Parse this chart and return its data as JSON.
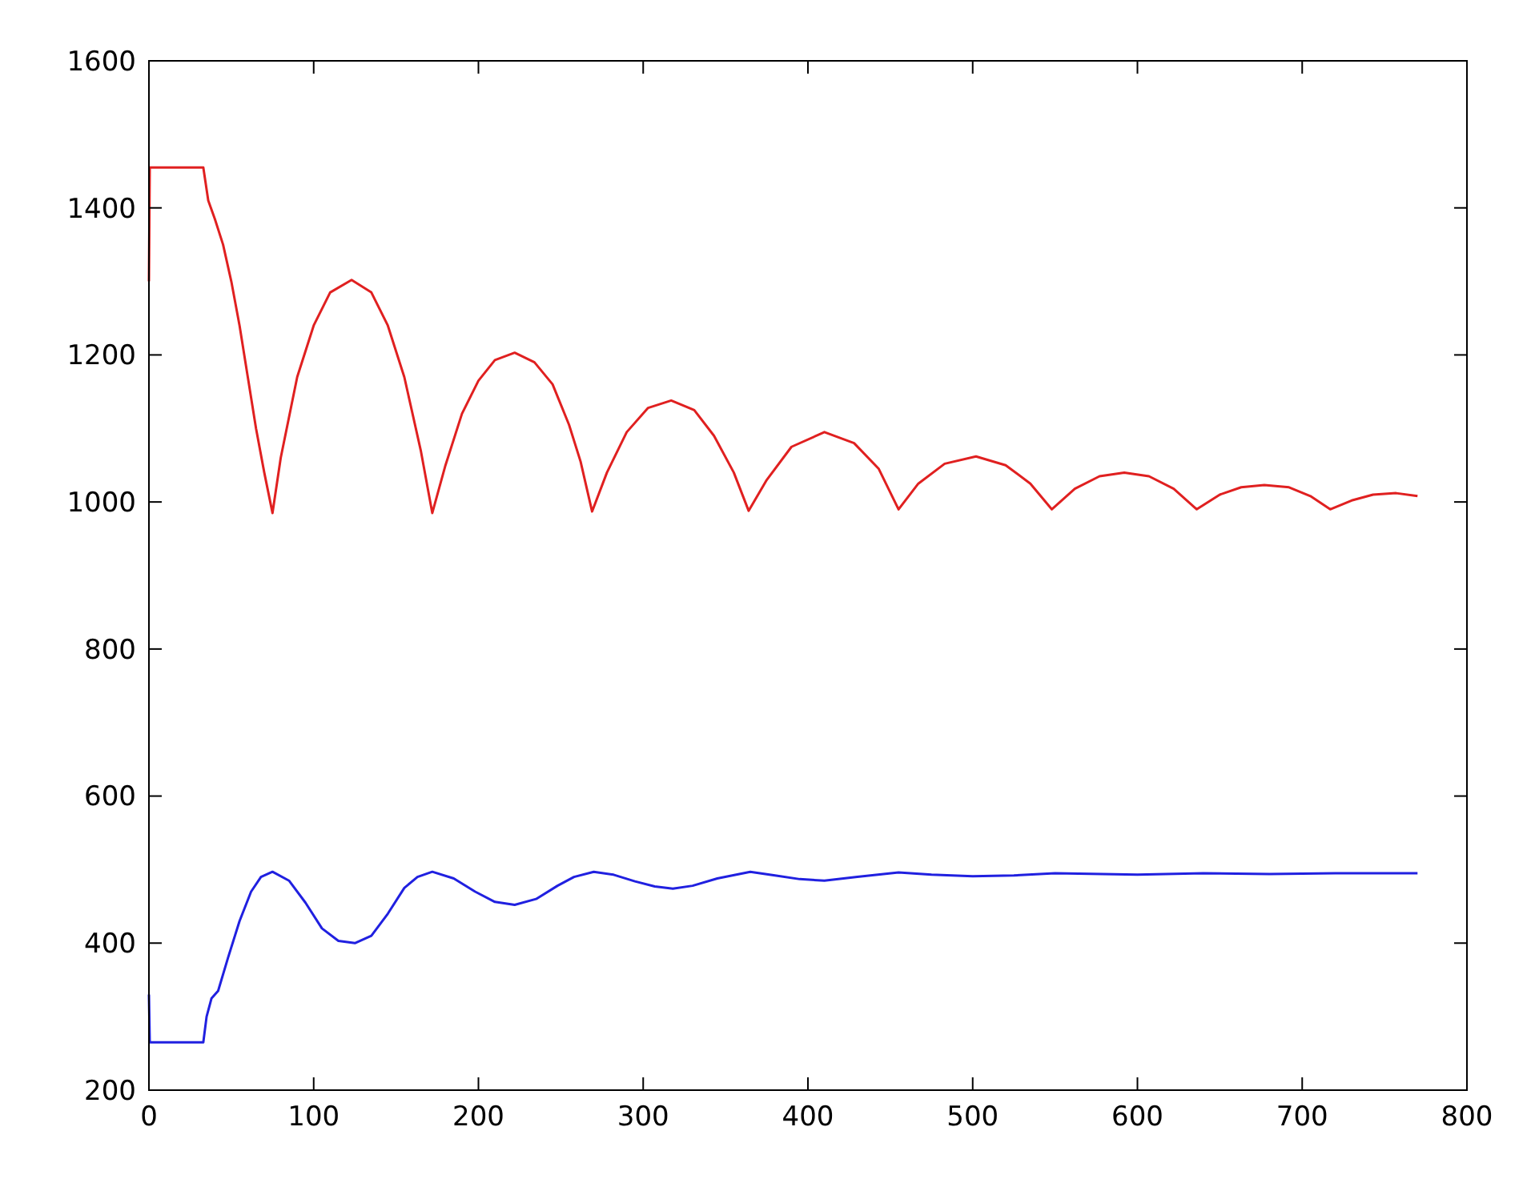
{
  "chart_data": {
    "type": "line",
    "xlim": [
      0,
      800
    ],
    "ylim": [
      200,
      1600
    ],
    "xticks": [
      0,
      100,
      200,
      300,
      400,
      500,
      600,
      700,
      800
    ],
    "yticks": [
      200,
      400,
      600,
      800,
      1000,
      1200,
      1400,
      1600
    ],
    "grid": false,
    "series": [
      {
        "color": "#e02020",
        "x": [
          0,
          0.5,
          33,
          36,
          40,
          45,
          50,
          55,
          60,
          65,
          70,
          75,
          80,
          90,
          100,
          110,
          123,
          135,
          145,
          155,
          165,
          172,
          180,
          190,
          200,
          210,
          222,
          234,
          245,
          255,
          262,
          269,
          278,
          290,
          303,
          317,
          331,
          343,
          355,
          364,
          375,
          390,
          410,
          428,
          443,
          455,
          467,
          483,
          502,
          520,
          535,
          548,
          562,
          577,
          592,
          607,
          622,
          636,
          650,
          663,
          677,
          692,
          705,
          717,
          730,
          743,
          757,
          770
        ],
        "values": [
          1300,
          1455,
          1455,
          1410,
          1385,
          1350,
          1300,
          1240,
          1170,
          1100,
          1040,
          985,
          1060,
          1170,
          1240,
          1285,
          1302,
          1285,
          1240,
          1170,
          1070,
          985,
          1050,
          1120,
          1165,
          1193,
          1203,
          1190,
          1160,
          1105,
          1055,
          987,
          1040,
          1095,
          1128,
          1138,
          1125,
          1090,
          1040,
          988,
          1030,
          1075,
          1095,
          1080,
          1045,
          990,
          1025,
          1052,
          1062,
          1050,
          1025,
          990,
          1018,
          1035,
          1040,
          1035,
          1018,
          990,
          1010,
          1020,
          1023,
          1020,
          1008,
          990,
          1002,
          1010,
          1012,
          1008
        ]
      },
      {
        "color": "#2020e0",
        "x": [
          0,
          0.5,
          33,
          35,
          38,
          42,
          48,
          55,
          62,
          68,
          75,
          85,
          95,
          105,
          115,
          125,
          135,
          145,
          155,
          163,
          172,
          185,
          198,
          210,
          222,
          235,
          248,
          258,
          270,
          282,
          295,
          307,
          318,
          330,
          345,
          365,
          380,
          395,
          410,
          430,
          455,
          475,
          500,
          525,
          550,
          600,
          640,
          680,
          720,
          770
        ],
        "values": [
          330,
          265,
          265,
          300,
          325,
          335,
          380,
          430,
          470,
          490,
          497,
          485,
          455,
          420,
          403,
          400,
          410,
          440,
          475,
          490,
          497,
          488,
          470,
          456,
          452,
          460,
          478,
          490,
          497,
          493,
          484,
          477,
          474,
          478,
          488,
          497,
          492,
          487,
          485,
          490,
          496,
          493,
          491,
          492,
          495,
          493,
          495,
          494,
          495,
          495
        ]
      }
    ]
  }
}
